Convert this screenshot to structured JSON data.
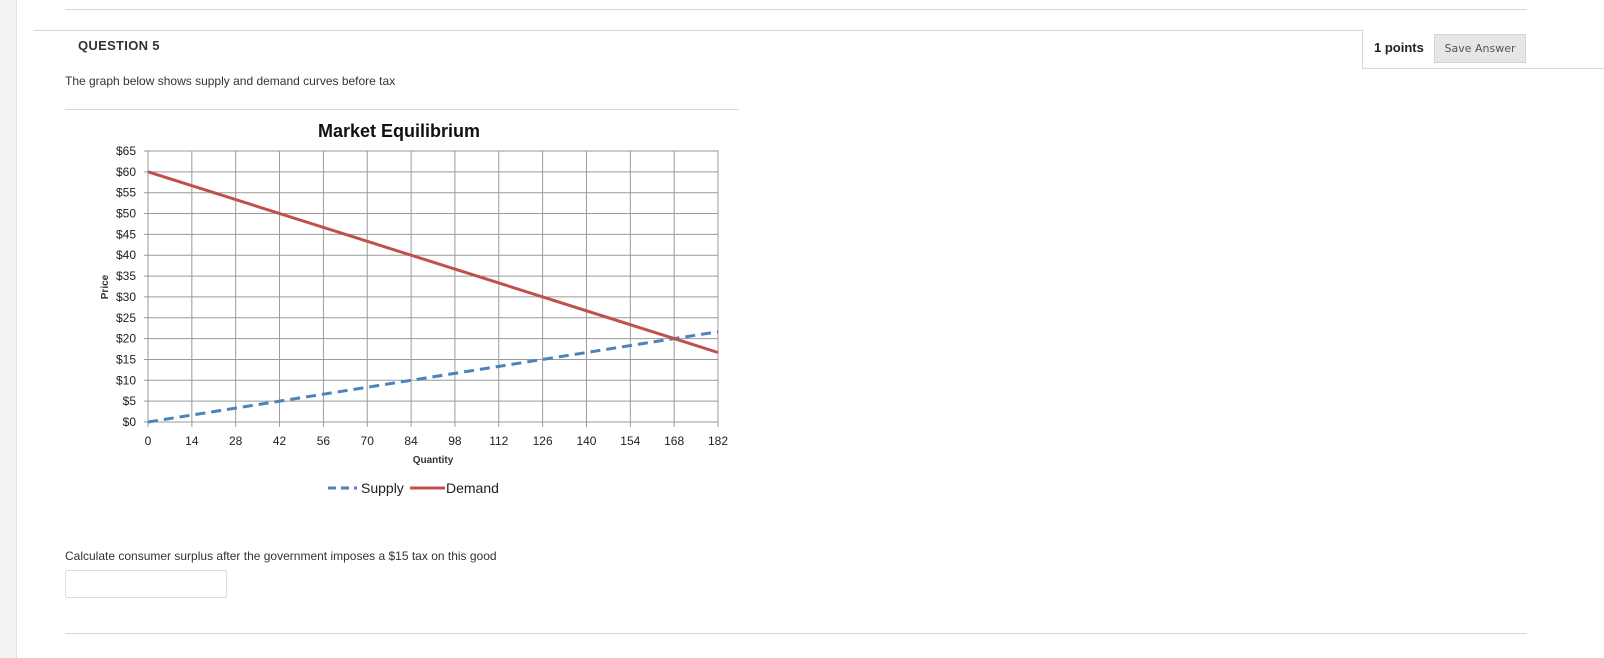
{
  "question": {
    "title": "QUESTION 5",
    "points": "1 points",
    "save_button": "Save Answer",
    "prompt": "The graph below shows supply and demand curves before tax",
    "text": "Calculate consumer surplus after the government imposes a $15 tax on this good",
    "answer_value": ""
  },
  "chart_data": {
    "type": "line",
    "title": "Market Equilibrium",
    "xlabel": "Quantity",
    "ylabel": "Price",
    "x_ticks": [
      0,
      14,
      28,
      42,
      56,
      70,
      84,
      98,
      112,
      126,
      140,
      154,
      168,
      182
    ],
    "y_ticks": [
      "$0",
      "$5",
      "$10",
      "$15",
      "$20",
      "$25",
      "$30",
      "$35",
      "$40",
      "$45",
      "$50",
      "$55",
      "$60",
      "$65"
    ],
    "xlim": [
      0,
      182
    ],
    "ylim": [
      0,
      65
    ],
    "grid": true,
    "legend_position": "bottom",
    "series": [
      {
        "name": "Supply",
        "style": "dashed",
        "color": "#4f81bd",
        "x": [
          0,
          168,
          182
        ],
        "y": [
          0,
          20,
          21.67
        ]
      },
      {
        "name": "Demand",
        "style": "solid",
        "color": "#c0504d",
        "x": [
          0,
          168,
          182
        ],
        "y": [
          60,
          20,
          16.67
        ]
      }
    ]
  }
}
